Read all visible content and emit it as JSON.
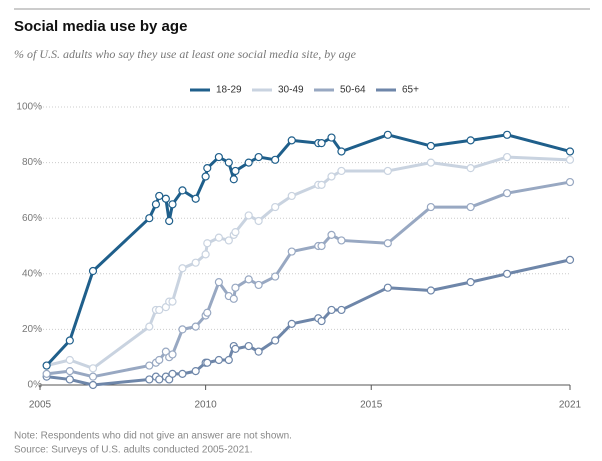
{
  "chart_data": {
    "type": "line",
    "title": "Social media use by age",
    "subtitle": "% of U.S. adults who say they use at least one social media site, by age",
    "note": "Note: Respondents who did not give an answer are not shown.",
    "source": "Source: Surveys of U.S. adults conducted 2005-2021.",
    "x": [
      2005.2,
      2005.9,
      2006.6,
      2008.3,
      2008.5,
      2008.6,
      2008.8,
      2008.9,
      2009.0,
      2009.3,
      2009.7,
      2010.0,
      2010.05,
      2010.4,
      2010.7,
      2010.85,
      2010.9,
      2011.3,
      2011.6,
      2012.1,
      2012.6,
      2013.4,
      2013.5,
      2013.8,
      2014.1,
      2015.5,
      2016.8,
      2018.0,
      2019.1,
      2021
    ],
    "series": [
      {
        "name": "18-29",
        "color": "#1f5f8b",
        "values": [
          7,
          16,
          41,
          60,
          65,
          68,
          67,
          59,
          65,
          70,
          67,
          75,
          78,
          82,
          80,
          74,
          77,
          80,
          82,
          81,
          88,
          87,
          87,
          89,
          84,
          90,
          86,
          88,
          90,
          84
        ]
      },
      {
        "name": "30-49",
        "color": "#c9d3e0",
        "values": [
          7,
          9,
          6,
          21,
          27,
          27,
          28,
          30,
          30,
          42,
          44,
          47,
          51,
          53,
          52,
          54,
          55,
          61,
          59,
          64,
          68,
          72,
          72,
          75,
          77,
          77,
          80,
          78,
          82,
          81
        ]
      },
      {
        "name": "50-64",
        "color": "#98a8c2",
        "values": [
          4,
          5,
          3,
          7,
          8,
          9,
          12,
          10,
          11,
          20,
          21,
          25,
          26,
          37,
          32,
          31,
          35,
          38,
          36,
          39,
          48,
          50,
          50,
          54,
          52,
          51,
          64,
          64,
          69,
          73
        ]
      },
      {
        "name": "65+",
        "color": "#6e86a9",
        "values": [
          3,
          2,
          0,
          2,
          3,
          2,
          3,
          2,
          4,
          4,
          5,
          8,
          8,
          9,
          9,
          14,
          13,
          14,
          12,
          16,
          22,
          24,
          23,
          27,
          27,
          35,
          34,
          37,
          40,
          45
        ]
      }
    ],
    "xlim": [
      2005,
      2021
    ],
    "xticks": [
      2005,
      2010,
      2015,
      2021
    ],
    "ylim": [
      0,
      100
    ],
    "yticks": [
      {
        "value": 0,
        "label": "0%"
      },
      {
        "value": 20,
        "label": "20%"
      },
      {
        "value": 40,
        "label": "40%"
      },
      {
        "value": 60,
        "label": "60%"
      },
      {
        "value": 80,
        "label": "80%"
      },
      {
        "value": 100,
        "label": "100%"
      }
    ],
    "grid": true,
    "legend": "top"
  }
}
